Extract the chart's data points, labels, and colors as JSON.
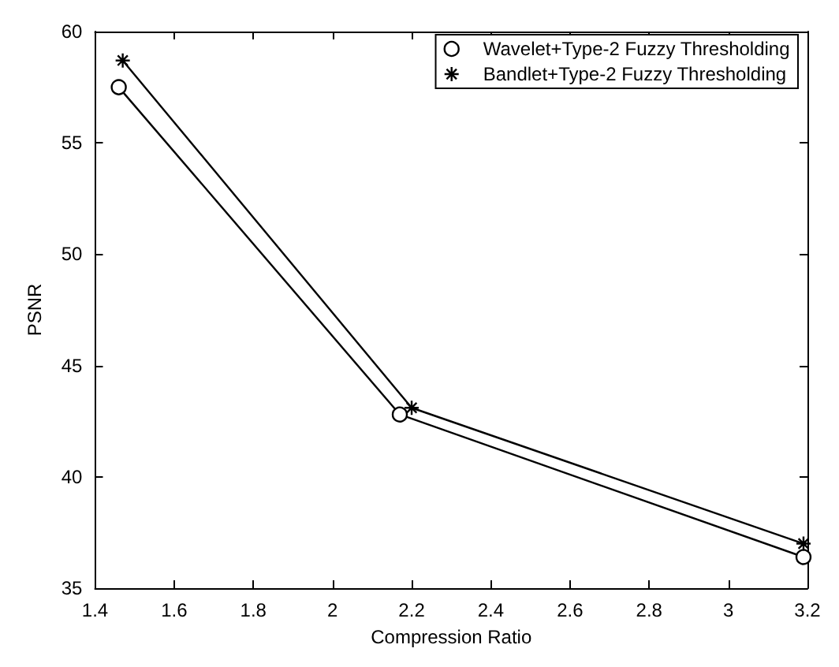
{
  "chart_data": {
    "type": "line",
    "xlabel": "Compression Ratio",
    "ylabel": "PSNR",
    "xlim": [
      1.4,
      3.2
    ],
    "xticks": [
      1.4,
      1.6,
      1.8,
      2,
      2.2,
      2.4,
      2.6,
      2.8,
      3,
      3.2
    ],
    "ylim": [
      35,
      60
    ],
    "yticks": [
      35,
      40,
      45,
      50,
      55,
      60
    ],
    "grid": false,
    "legend": "top right",
    "line_style": "solid",
    "series": [
      {
        "name": "Wavelet+Type-2 Fuzzy Thresholding",
        "color": "#000000",
        "marker": "circle",
        "x": [
          1.46,
          2.17,
          3.19
        ],
        "values": [
          57.5,
          42.8,
          36.4
        ]
      },
      {
        "name": "Bandlet+Type-2 Fuzzy Thresholding",
        "color": "#000000",
        "marker": "cross",
        "x": [
          1.47,
          2.2,
          3.19
        ],
        "values": [
          58.7,
          43.1,
          37.0
        ]
      }
    ]
  }
}
